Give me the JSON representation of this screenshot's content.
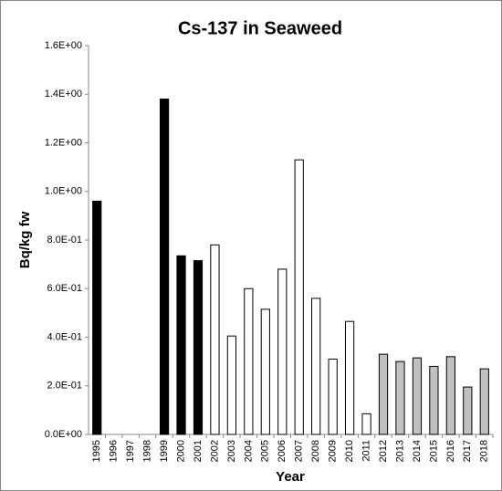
{
  "chart_data": {
    "type": "bar",
    "title": "Cs-137 in Seaweed",
    "x_label": "Year",
    "y_label": "Bq/kg fw",
    "categories": [
      "1995",
      "1996",
      "1997",
      "1998",
      "1999",
      "2000",
      "2001",
      "2002",
      "2003",
      "2004",
      "2005",
      "2006",
      "2007",
      "2008",
      "2009",
      "2010",
      "2011",
      "2012",
      "2013",
      "2014",
      "2015",
      "2016",
      "2017",
      "2018"
    ],
    "values": [
      0.96,
      null,
      null,
      null,
      1.38,
      0.735,
      0.715,
      0.78,
      0.405,
      0.6,
      0.515,
      0.68,
      1.13,
      0.56,
      0.31,
      0.465,
      0.085,
      0.33,
      0.3,
      0.315,
      0.28,
      0.32,
      0.195,
      0.27
    ],
    "colors": [
      "#000000",
      null,
      null,
      null,
      "#000000",
      "#000000",
      "#000000",
      "#ffffff",
      "#ffffff",
      "#ffffff",
      "#ffffff",
      "#ffffff",
      "#ffffff",
      "#ffffff",
      "#ffffff",
      "#ffffff",
      "#ffffff",
      "#c0c0c0",
      "#c0c0c0",
      "#c0c0c0",
      "#c0c0c0",
      "#c0c0c0",
      "#c0c0c0",
      "#c0c0c0"
    ],
    "ylim": [
      0,
      1.6
    ],
    "yticks": [
      {
        "value": 0,
        "label": "0.0E+00"
      },
      {
        "value": 0.2,
        "label": "2.0E-01"
      },
      {
        "value": 0.4,
        "label": "4.0E-01"
      },
      {
        "value": 0.6,
        "label": "6.0E-01"
      },
      {
        "value": 0.8,
        "label": "8.0E-01"
      },
      {
        "value": 1.0,
        "label": "1.0E+00"
      },
      {
        "value": 1.2,
        "label": "1.2E+00"
      },
      {
        "value": 1.4,
        "label": "1.4E+00"
      },
      {
        "value": 1.6,
        "label": "1.6E+00"
      }
    ],
    "grid": false
  }
}
